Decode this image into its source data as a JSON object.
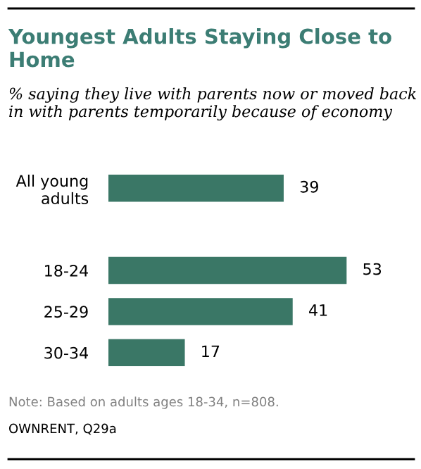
{
  "chart_data": {
    "type": "bar",
    "orientation": "horizontal",
    "title": "Youngest Adults Staying Close to Home",
    "subtitle": "% saying they live with parents now or moved back in with parents temporarily because of economy",
    "categories": [
      "All young\nadults",
      null,
      "18-24",
      "25-29",
      "30-34"
    ],
    "values": [
      39,
      null,
      53,
      41,
      17
    ],
    "color": "#3a7766",
    "data_labels": true,
    "grid": false,
    "legend": false,
    "annotations": [
      "Note: Based on adults ages 18-34, n=808.",
      "OWNRENT, Q29a"
    ]
  }
}
